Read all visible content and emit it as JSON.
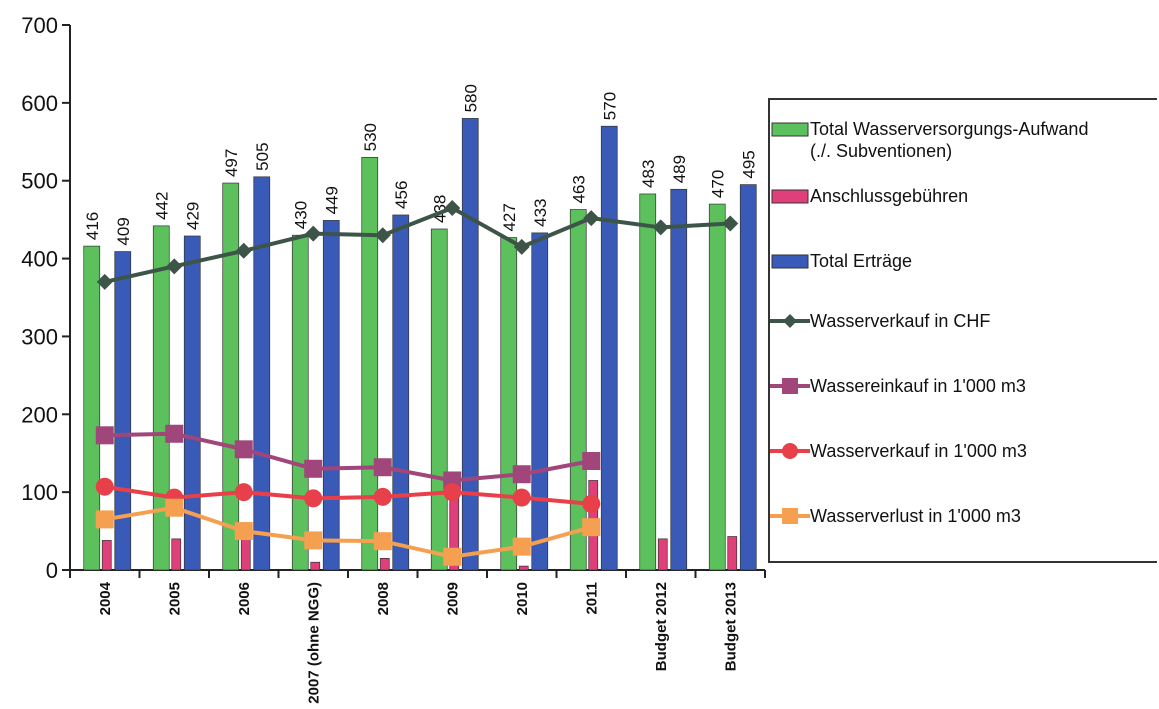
{
  "chart_data": {
    "type": "bar",
    "categories": [
      "2004",
      "2005",
      "2006",
      "2007 (ohne NGG)",
      "2008",
      "2009",
      "2010",
      "2011",
      "Budget 2012",
      "Budget 2013"
    ],
    "series": [
      {
        "name": "Total Wasserversorgungs-Aufwand (./. Subventionen)",
        "type": "bar",
        "color": "#5cc05c",
        "values": [
          416,
          442,
          497,
          430,
          530,
          438,
          427,
          463,
          483,
          470
        ],
        "labels": true
      },
      {
        "name": "Anschlussgebühren",
        "type": "bar",
        "color": "#e0407a",
        "values": [
          38,
          40,
          45,
          10,
          15,
          100,
          5,
          115,
          40,
          43
        ]
      },
      {
        "name": "Total Erträge",
        "type": "bar",
        "color": "#3a5ab8",
        "values": [
          409,
          429,
          505,
          449,
          456,
          580,
          433,
          570,
          489,
          495
        ],
        "labels": true
      },
      {
        "name": "Wasserverkauf in CHF",
        "type": "line",
        "marker": "diamond",
        "color": "#3d5548",
        "values": [
          370,
          390,
          410,
          432,
          430,
          465,
          415,
          452,
          440,
          445
        ]
      },
      {
        "name": "Wassereinkauf in 1'000 m3",
        "type": "line",
        "marker": "square",
        "color": "#a0467a",
        "values": [
          173,
          175,
          155,
          130,
          132,
          115,
          123,
          140,
          null,
          null
        ]
      },
      {
        "name": "Wasserverkauf in 1'000 m3",
        "type": "line",
        "marker": "circle",
        "color": "#e8404a",
        "values": [
          107,
          93,
          100,
          92,
          94,
          100,
          93,
          85,
          null,
          null
        ]
      },
      {
        "name": "Wasserverlust in 1'000 m3",
        "type": "line",
        "marker": "square",
        "color": "#f5a050",
        "values": [
          65,
          80,
          50,
          38,
          37,
          17,
          30,
          55,
          null,
          null
        ]
      }
    ],
    "ylim": [
      0,
      700
    ],
    "yticks": [
      0,
      100,
      200,
      300,
      400,
      500,
      600,
      700
    ],
    "legend": "right"
  }
}
